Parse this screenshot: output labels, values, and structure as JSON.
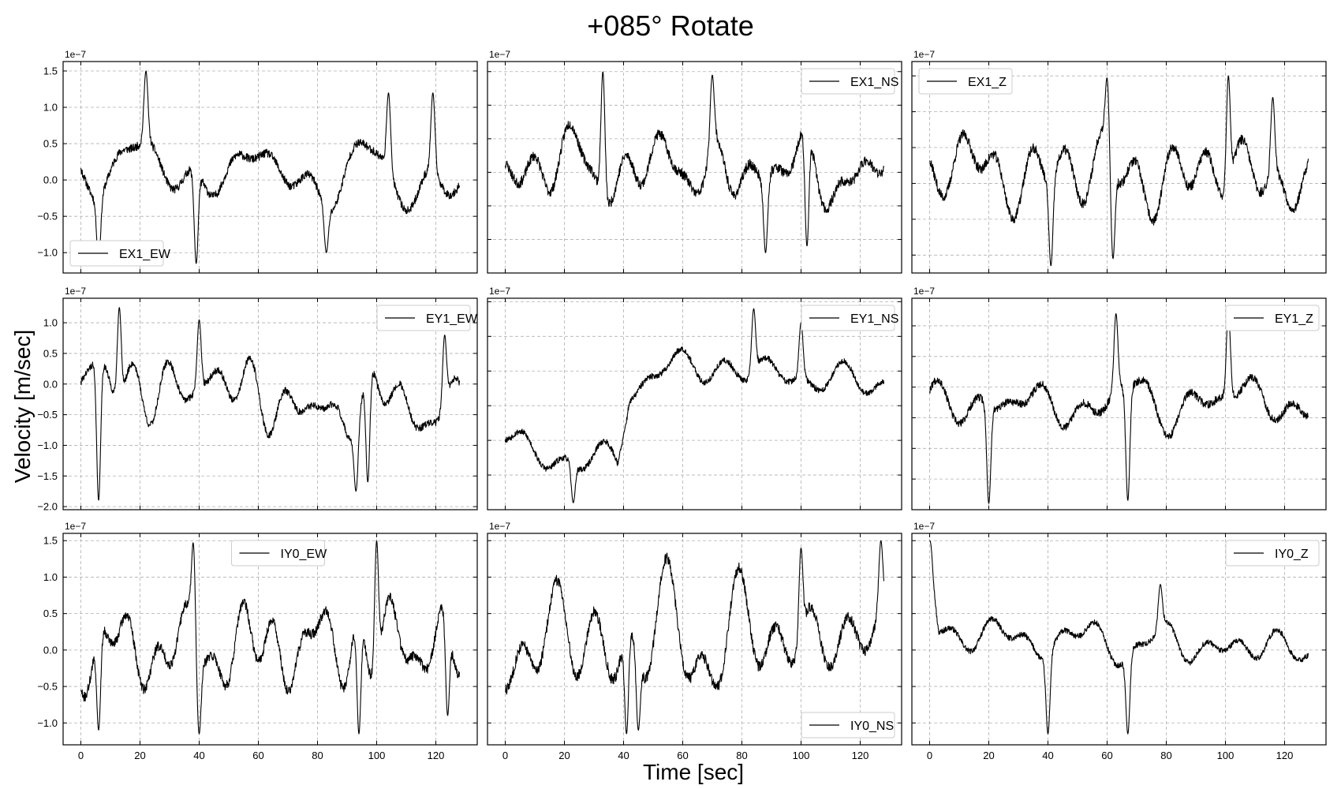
{
  "figure": {
    "title": "+085° Rotate",
    "xlabel": "Time [sec]",
    "ylabel": "Velocity [m/sec]"
  },
  "chart_data": [
    {
      "type": "line",
      "series": [
        {
          "name": "EX1_EW"
        }
      ],
      "legend_loc": "lower-left",
      "y_exponent": "1e−7",
      "x_ticks": [
        0,
        20,
        40,
        60,
        80,
        100,
        120
      ],
      "y_ticks": [
        -1.0,
        -0.5,
        0.0,
        0.5,
        1.0,
        1.5
      ],
      "xlim": [
        -6,
        134
      ],
      "ylim": [
        -1.28,
        1.63
      ],
      "show_y_tick_labels": true,
      "show_x_tick_labels": false,
      "grid": true,
      "seed": 11,
      "trend": [
        [
          0,
          0.2
        ],
        [
          128,
          0.0
        ]
      ],
      "amp": 0.45,
      "extremes": [
        [
          6,
          -1.1
        ],
        [
          22,
          1.5
        ],
        [
          39,
          -1.15
        ],
        [
          83,
          -1.0
        ],
        [
          104,
          1.2
        ],
        [
          119,
          1.2
        ]
      ]
    },
    {
      "type": "line",
      "series": [
        {
          "name": "EX1_NS"
        }
      ],
      "legend_loc": "upper-right",
      "y_exponent": "1e−7",
      "x_ticks": [
        0,
        20,
        40,
        60,
        80,
        100,
        120
      ],
      "y_ticks": [
        -1.0,
        -0.5,
        0.0,
        0.5,
        1.0,
        1.5
      ],
      "xlim": [
        -6,
        134
      ],
      "ylim": [
        -1.5,
        1.65
      ],
      "show_y_tick_labels": false,
      "show_x_tick_labels": false,
      "grid": true,
      "seed": 23,
      "trend": [
        [
          0,
          0.1
        ],
        [
          128,
          0.0
        ]
      ],
      "amp": 0.6,
      "extremes": [
        [
          33,
          1.5
        ],
        [
          88,
          -1.2
        ],
        [
          102,
          -1.1
        ],
        [
          70,
          1.45
        ]
      ]
    },
    {
      "type": "line",
      "series": [
        {
          "name": "EX1_Z"
        }
      ],
      "legend_loc": "upper-left",
      "y_exponent": "1e−7",
      "x_ticks": [
        0,
        20,
        40,
        60,
        80,
        100,
        120
      ],
      "y_ticks": [
        -1.0,
        -0.5,
        0.0,
        0.5,
        1.0,
        1.5
      ],
      "xlim": [
        -6,
        134
      ],
      "ylim": [
        -1.25,
        1.7
      ],
      "show_y_tick_labels": false,
      "show_x_tick_labels": false,
      "grid": true,
      "seed": 37,
      "trend": [
        [
          0,
          0.2
        ],
        [
          128,
          0.1
        ]
      ],
      "amp": 0.55,
      "extremes": [
        [
          41,
          -1.15
        ],
        [
          60,
          1.5
        ],
        [
          62,
          -1.05
        ],
        [
          101,
          1.5
        ],
        [
          116,
          1.2
        ]
      ]
    },
    {
      "type": "line",
      "series": [
        {
          "name": "EY1_EW"
        }
      ],
      "legend_loc": "upper-right",
      "y_exponent": "1e−7",
      "x_ticks": [
        0,
        20,
        40,
        60,
        80,
        100,
        120
      ],
      "y_ticks": [
        -2.0,
        -1.5,
        -1.0,
        -0.5,
        0.0,
        0.5,
        1.0
      ],
      "xlim": [
        -6,
        134
      ],
      "ylim": [
        -2.05,
        1.4
      ],
      "show_y_tick_labels": true,
      "show_x_tick_labels": false,
      "grid": true,
      "seed": 41,
      "trend": [
        [
          0,
          0.0
        ],
        [
          40,
          0.0
        ],
        [
          80,
          -0.4
        ],
        [
          128,
          -0.3
        ]
      ],
      "amp": 0.45,
      "extremes": [
        [
          6,
          -1.9
        ],
        [
          13,
          1.25
        ],
        [
          40,
          1.05
        ],
        [
          93,
          -1.75
        ],
        [
          97,
          -1.6
        ],
        [
          123,
          0.8
        ]
      ]
    },
    {
      "type": "line",
      "series": [
        {
          "name": "EY1_NS"
        }
      ],
      "legend_loc": "upper-right",
      "y_exponent": "1e−7",
      "x_ticks": [
        0,
        20,
        40,
        60,
        80,
        100,
        120
      ],
      "y_ticks": [
        -1.5,
        -1.0,
        -0.5,
        0.0,
        0.5,
        1.0
      ],
      "xlim": [
        -6,
        134
      ],
      "ylim": [
        -2.0,
        1.05
      ],
      "show_y_tick_labels": false,
      "show_x_tick_labels": false,
      "grid": true,
      "seed": 53,
      "trend": [
        [
          0,
          -1.0
        ],
        [
          20,
          -1.3
        ],
        [
          38,
          -1.3
        ],
        [
          42,
          -0.2
        ],
        [
          60,
          0.1
        ],
        [
          128,
          -0.2
        ]
      ],
      "amp": 0.35,
      "extremes": [
        [
          23,
          -1.9
        ],
        [
          84,
          0.9
        ],
        [
          100,
          0.7
        ]
      ]
    },
    {
      "type": "line",
      "series": [
        {
          "name": "EY1_Z"
        }
      ],
      "legend_loc": "upper-right",
      "y_exponent": "1e−7",
      "x_ticks": [
        0,
        20,
        40,
        60,
        80,
        100,
        120
      ],
      "y_ticks": [
        -1.5,
        -1.0,
        -0.5,
        0.0,
        0.5,
        1.0
      ],
      "xlim": [
        -6,
        134
      ],
      "ylim": [
        -2.0,
        1.45
      ],
      "show_y_tick_labels": false,
      "show_x_tick_labels": false,
      "grid": true,
      "seed": 67,
      "trend": [
        [
          0,
          -0.3
        ],
        [
          128,
          -0.2
        ]
      ],
      "amp": 0.5,
      "extremes": [
        [
          20,
          -1.9
        ],
        [
          67,
          -1.85
        ],
        [
          63,
          1.2
        ],
        [
          101,
          1.25
        ]
      ]
    },
    {
      "type": "line",
      "series": [
        {
          "name": "IY0_EW"
        }
      ],
      "legend_loc": "upper-center",
      "y_exponent": "1e−7",
      "x_ticks": [
        0,
        20,
        40,
        60,
        80,
        100,
        120
      ],
      "y_ticks": [
        -1.0,
        -0.5,
        0.0,
        0.5,
        1.0,
        1.5
      ],
      "xlim": [
        -6,
        134
      ],
      "ylim": [
        -1.3,
        1.6
      ],
      "show_y_tick_labels": true,
      "show_x_tick_labels": true,
      "grid": true,
      "seed": 71,
      "trend": [
        [
          0,
          0.0
        ],
        [
          128,
          0.1
        ]
      ],
      "amp": 0.55,
      "extremes": [
        [
          6,
          -1.1
        ],
        [
          38,
          1.5
        ],
        [
          40,
          -1.15
        ],
        [
          94,
          -1.15
        ],
        [
          100,
          1.5
        ],
        [
          124,
          -0.9
        ]
      ]
    },
    {
      "type": "line",
      "series": [
        {
          "name": "IY0_NS"
        }
      ],
      "legend_loc": "lower-right",
      "y_exponent": "1e−7",
      "x_ticks": [
        0,
        20,
        40,
        60,
        80,
        100,
        120
      ],
      "y_ticks": [
        -1.0,
        -0.5,
        0.0,
        0.5,
        1.0,
        1.5
      ],
      "xlim": [
        -6,
        134
      ],
      "ylim": [
        -1.3,
        1.6
      ],
      "show_y_tick_labels": false,
      "show_x_tick_labels": true,
      "grid": true,
      "seed": 83,
      "trend": [
        [
          0,
          0.1
        ],
        [
          128,
          0.2
        ]
      ],
      "amp": 0.6,
      "extremes": [
        [
          41,
          -1.15
        ],
        [
          45,
          -1.1
        ],
        [
          100,
          1.4
        ],
        [
          127,
          1.5
        ]
      ]
    },
    {
      "type": "line",
      "series": [
        {
          "name": "IY0_Z"
        }
      ],
      "legend_loc": "upper-right",
      "y_exponent": "1e−7",
      "x_ticks": [
        0,
        20,
        40,
        60,
        80,
        100,
        120
      ],
      "y_ticks": [
        -1.0,
        -0.5,
        0.0,
        0.5,
        1.0,
        1.5
      ],
      "xlim": [
        -6,
        134
      ],
      "ylim": [
        -1.3,
        1.6
      ],
      "show_y_tick_labels": false,
      "show_x_tick_labels": true,
      "grid": true,
      "seed": 97,
      "trend": [
        [
          0,
          1.4
        ],
        [
          3,
          0.3
        ],
        [
          10,
          0.2
        ],
        [
          128,
          0.0
        ]
      ],
      "amp": 0.3,
      "extremes": [
        [
          0,
          1.5
        ],
        [
          40,
          -1.15
        ],
        [
          67,
          -1.15
        ],
        [
          78,
          0.9
        ]
      ]
    }
  ]
}
